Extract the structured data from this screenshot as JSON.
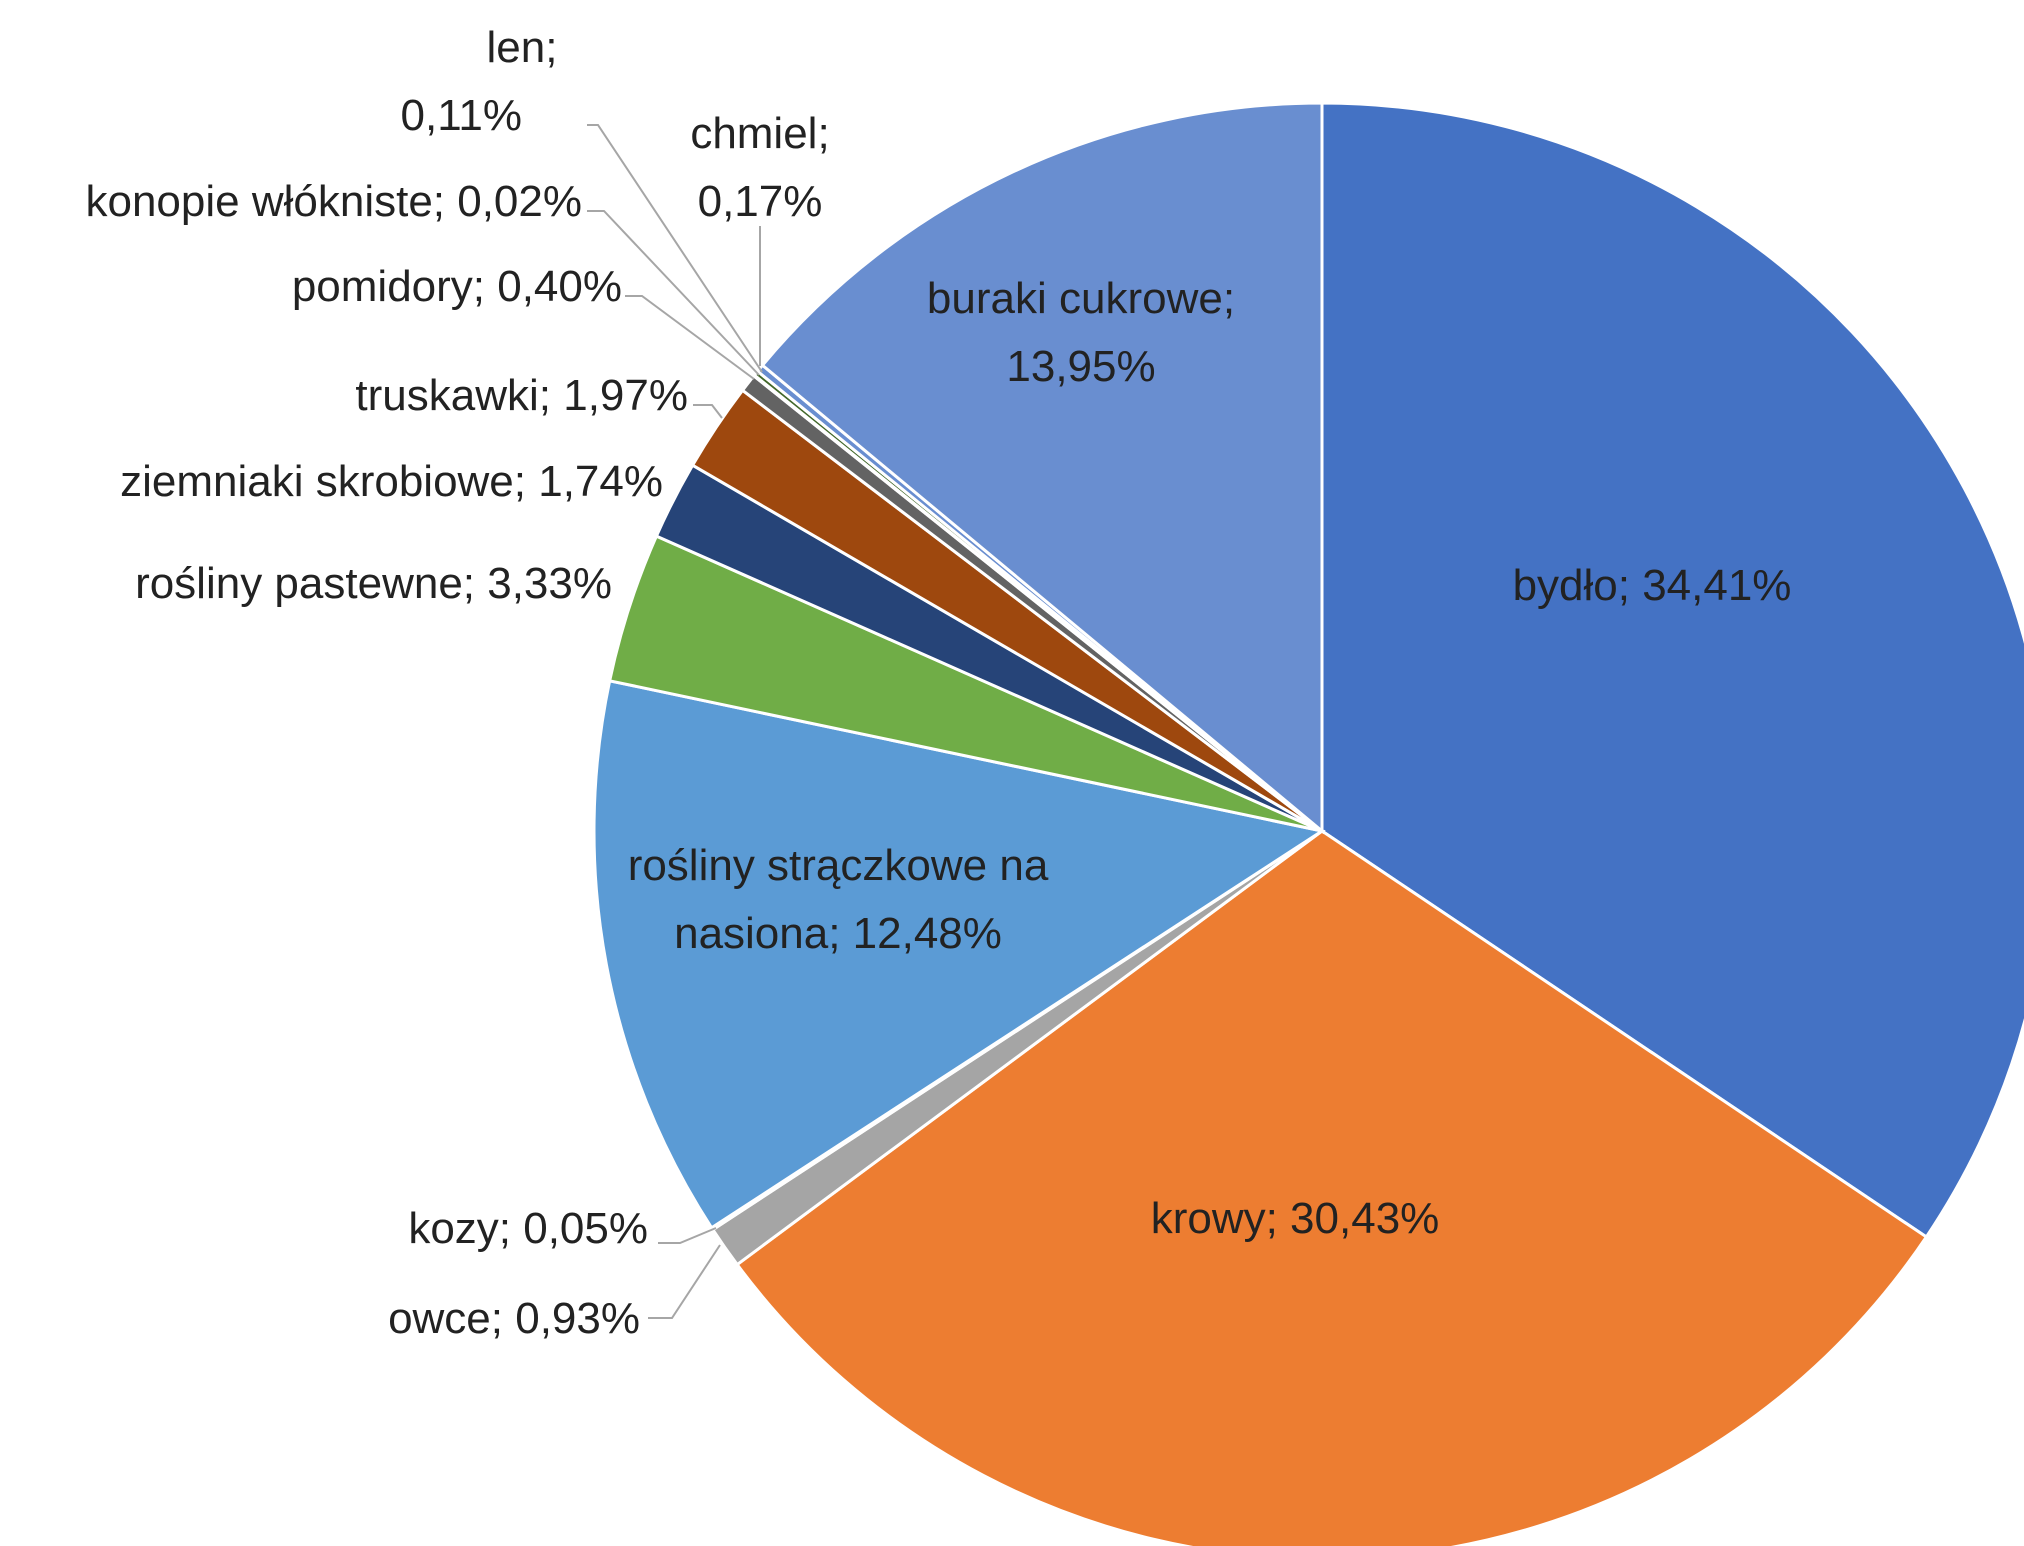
{
  "chart_data": {
    "type": "pie",
    "slices": [
      {
        "name": "bydło",
        "value": 34.41,
        "label": "bydło; 34,41%",
        "color": "#4472C4"
      },
      {
        "name": "krowy",
        "value": 30.43,
        "label": "krowy; 30,43%",
        "color": "#ED7D31"
      },
      {
        "name": "owce",
        "value": 0.93,
        "label": "owce; 0,93%",
        "color": "#A5A5A5"
      },
      {
        "name": "kozy",
        "value": 0.05,
        "label": "kozy; 0,05%",
        "color": "#FFC000"
      },
      {
        "name": "rośliny strączkowe na nasiona",
        "value": 12.48,
        "label_lines": [
          "rośliny strączkowe na",
          "nasiona; 12,48%"
        ],
        "color": "#5B9BD5"
      },
      {
        "name": "rośliny pastewne",
        "value": 3.33,
        "label": "rośliny pastewne; 3,33%",
        "color": "#70AD47"
      },
      {
        "name": "ziemniaki skrobiowe",
        "value": 1.74,
        "label": "ziemniaki skrobiowe; 1,74%",
        "color": "#264478"
      },
      {
        "name": "truskawki",
        "value": 1.97,
        "label": "truskawki; 1,97%",
        "color": "#9E480E"
      },
      {
        "name": "pomidory",
        "value": 0.4,
        "label": "pomidory; 0,40%",
        "color": "#636363"
      },
      {
        "name": "konopie włókniste",
        "value": 0.02,
        "label": "konopie włókniste; 0,02%",
        "color": "#997300"
      },
      {
        "name": "len",
        "value": 0.11,
        "label_lines": [
          "len;",
          "0,11%"
        ],
        "color": "#43682B"
      },
      {
        "name": "chmiel",
        "value": 0.17,
        "label_lines": [
          "chmiel;",
          "0,17%"
        ],
        "color": "#698ED0"
      },
      {
        "name": "buraki cukrowe",
        "value": 13.95,
        "label_lines": [
          "buraki cukrowe;",
          "13,95%"
        ],
        "color": "#698ED0"
      }
    ]
  }
}
